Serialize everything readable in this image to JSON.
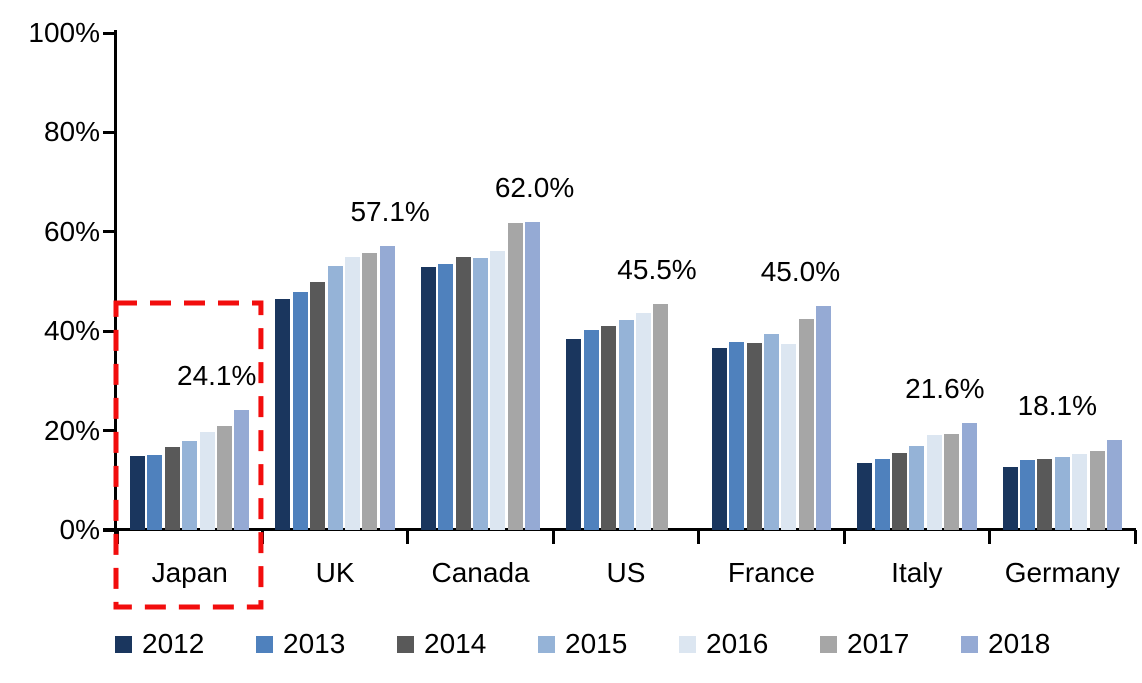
{
  "chart_data": {
    "type": "bar",
    "title": "",
    "categories": [
      "Japan",
      "UK",
      "Canada",
      "US",
      "France",
      "Italy",
      "Germany"
    ],
    "series": [
      {
        "name": "2012",
        "color": "#1A365E",
        "values": [
          14.8,
          46.4,
          53.0,
          38.4,
          36.6,
          13.4,
          12.6
        ]
      },
      {
        "name": "2013",
        "color": "#4F81BD",
        "values": [
          15.0,
          47.8,
          53.5,
          40.2,
          37.8,
          14.2,
          14.0
        ]
      },
      {
        "name": "2014",
        "color": "#595959",
        "values": [
          16.7,
          50.0,
          55.0,
          41.1,
          37.7,
          15.4,
          14.3
        ]
      },
      {
        "name": "2015",
        "color": "#95B3D7",
        "values": [
          18.0,
          53.2,
          54.7,
          42.2,
          39.4,
          16.9,
          14.7
        ]
      },
      {
        "name": "2016",
        "color": "#DCE6F1",
        "values": [
          19.7,
          54.9,
          56.2,
          43.6,
          37.5,
          19.1,
          15.2
        ]
      },
      {
        "name": "2017",
        "color": "#A6A6A6",
        "values": [
          20.9,
          55.8,
          61.8,
          45.5,
          42.4,
          19.3,
          15.8
        ]
      },
      {
        "name": "2018",
        "color": "#95AAD4",
        "values": [
          24.1,
          57.1,
          62.0,
          null,
          45.0,
          21.6,
          18.1
        ]
      }
    ],
    "annotations": [
      {
        "category": "Japan",
        "text": "24.1%",
        "dx": 27
      },
      {
        "category": "UK",
        "text": "57.1%",
        "dx": 55
      },
      {
        "category": "Canada",
        "text": "62.0%",
        "dx": 54
      },
      {
        "category": "US",
        "text": "45.5%",
        "dx": 31
      },
      {
        "category": "France",
        "text": "45.0%",
        "dx": 29
      },
      {
        "category": "Italy",
        "text": "21.6%",
        "dx": 28
      },
      {
        "category": "Germany",
        "text": "18.1%",
        "dx": -5
      }
    ],
    "y_axis": {
      "tick_labels": [
        "0%",
        "20%",
        "40%",
        "60%",
        "80%",
        "100%"
      ],
      "min": 0,
      "max": 100,
      "grid": false
    },
    "legend": {
      "position": "bottom",
      "entries": [
        "2012",
        "2013",
        "2014",
        "2015",
        "2016",
        "2017",
        "2018"
      ]
    },
    "highlight": {
      "category": "Japan",
      "shape": "dashed-rectangle",
      "color": "#F20D0D"
    }
  }
}
